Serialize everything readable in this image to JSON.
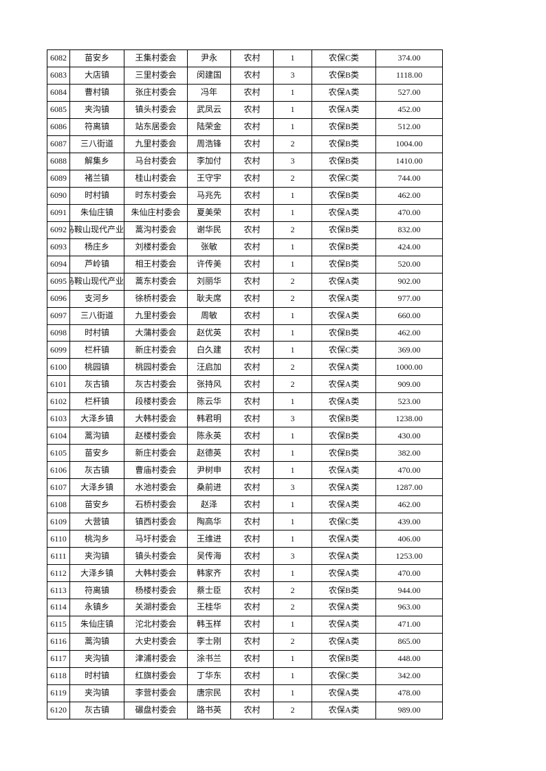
{
  "table": {
    "rows": [
      [
        "6082",
        "苗安乡",
        "王集村委会",
        "尹永",
        "农村",
        "1",
        "农保C类",
        "374.00"
      ],
      [
        "6083",
        "大店镇",
        "三里村委会",
        "闵建国",
        "农村",
        "3",
        "农保B类",
        "1118.00"
      ],
      [
        "6084",
        "曹村镇",
        "张庄村委会",
        "冯年",
        "农村",
        "1",
        "农保A类",
        "527.00"
      ],
      [
        "6085",
        "夹沟镇",
        "镇头村委会",
        "武凤云",
        "农村",
        "1",
        "农保A类",
        "452.00"
      ],
      [
        "6086",
        "符离镇",
        "站东居委会",
        "陆荣金",
        "农村",
        "1",
        "农保B类",
        "512.00"
      ],
      [
        "6087",
        "三八街道",
        "九里村委会",
        "周浩锋",
        "农村",
        "2",
        "农保B类",
        "1004.00"
      ],
      [
        "6088",
        "解集乡",
        "马台村委会",
        "李加付",
        "农村",
        "3",
        "农保B类",
        "1410.00"
      ],
      [
        "6089",
        "褚兰镇",
        "桂山村委会",
        "王守宇",
        "农村",
        "2",
        "农保C类",
        "744.00"
      ],
      [
        "6090",
        "时村镇",
        "时东村委会",
        "马兆先",
        "农村",
        "1",
        "农保B类",
        "462.00"
      ],
      [
        "6091",
        "朱仙庄镇",
        "朱仙庄村委会",
        "夏美荣",
        "农村",
        "1",
        "农保A类",
        "470.00"
      ],
      [
        "6092",
        "马鞍山现代产业",
        "蒿沟村委会",
        "谢华民",
        "农村",
        "2",
        "农保B类",
        "832.00"
      ],
      [
        "6093",
        "杨庄乡",
        "刘楼村委会",
        "张敏",
        "农村",
        "1",
        "农保B类",
        "424.00"
      ],
      [
        "6094",
        "芦岭镇",
        "相王村委会",
        "许传美",
        "农村",
        "1",
        "农保B类",
        "520.00"
      ],
      [
        "6095",
        "马鞍山现代产业",
        "蒿东村委会",
        "刘丽华",
        "农村",
        "2",
        "农保A类",
        "902.00"
      ],
      [
        "6096",
        "支河乡",
        "徐桥村委会",
        "耿夫席",
        "农村",
        "2",
        "农保A类",
        "977.00"
      ],
      [
        "6097",
        "三八街道",
        "九里村委会",
        "周敏",
        "农村",
        "1",
        "农保A类",
        "660.00"
      ],
      [
        "6098",
        "时村镇",
        "大蒲村委会",
        "赵优英",
        "农村",
        "1",
        "农保B类",
        "462.00"
      ],
      [
        "6099",
        "栏杆镇",
        "新庄村委会",
        "白久建",
        "农村",
        "1",
        "农保C类",
        "369.00"
      ],
      [
        "6100",
        "桃园镇",
        "桃园村委会",
        "汪启加",
        "农村",
        "2",
        "农保A类",
        "1000.00"
      ],
      [
        "6101",
        "灰古镇",
        "灰古村委会",
        "张持风",
        "农村",
        "2",
        "农保A类",
        "909.00"
      ],
      [
        "6102",
        "栏杆镇",
        "段楼村委会",
        "陈云华",
        "农村",
        "1",
        "农保A类",
        "523.00"
      ],
      [
        "6103",
        "大泽乡镇",
        "大韩村委会",
        "韩君明",
        "农村",
        "3",
        "农保B类",
        "1238.00"
      ],
      [
        "6104",
        "蒿沟镇",
        "赵楼村委会",
        "陈永英",
        "农村",
        "1",
        "农保B类",
        "430.00"
      ],
      [
        "6105",
        "苗安乡",
        "新庄村委会",
        "赵德英",
        "农村",
        "1",
        "农保B类",
        "382.00"
      ],
      [
        "6106",
        "灰古镇",
        "曹庙村委会",
        "尹树申",
        "农村",
        "1",
        "农保A类",
        "470.00"
      ],
      [
        "6107",
        "大泽乡镇",
        "水池村委会",
        "桑前进",
        "农村",
        "3",
        "农保A类",
        "1287.00"
      ],
      [
        "6108",
        "苗安乡",
        "石桥村委会",
        "赵泽",
        "农村",
        "1",
        "农保A类",
        "462.00"
      ],
      [
        "6109",
        "大营镇",
        "镇西村委会",
        "陶高华",
        "农村",
        "1",
        "农保C类",
        "439.00"
      ],
      [
        "6110",
        "桃沟乡",
        "马圩村委会",
        "王维进",
        "农村",
        "1",
        "农保A类",
        "406.00"
      ],
      [
        "6111",
        "夹沟镇",
        "镇头村委会",
        "吴传海",
        "农村",
        "3",
        "农保A类",
        "1253.00"
      ],
      [
        "6112",
        "大泽乡镇",
        "大韩村委会",
        "韩家齐",
        "农村",
        "1",
        "农保A类",
        "470.00"
      ],
      [
        "6113",
        "符离镇",
        "杨楼村委会",
        "蔡士臣",
        "农村",
        "2",
        "农保B类",
        "944.00"
      ],
      [
        "6114",
        "永镇乡",
        "关湖村委会",
        "王桂华",
        "农村",
        "2",
        "农保A类",
        "963.00"
      ],
      [
        "6115",
        "朱仙庄镇",
        "沱北村委会",
        "韩玉样",
        "农村",
        "1",
        "农保A类",
        "471.00"
      ],
      [
        "6116",
        "蒿沟镇",
        "大史村委会",
        "李士刚",
        "农村",
        "2",
        "农保A类",
        "865.00"
      ],
      [
        "6117",
        "夹沟镇",
        "津浦村委会",
        "涂书兰",
        "农村",
        "1",
        "农保B类",
        "448.00"
      ],
      [
        "6118",
        "时村镇",
        "红旗村委会",
        "丁华东",
        "农村",
        "1",
        "农保C类",
        "342.00"
      ],
      [
        "6119",
        "夹沟镇",
        "李营村委会",
        "唐宗民",
        "农村",
        "1",
        "农保A类",
        "478.00"
      ],
      [
        "6120",
        "灰古镇",
        "碾盘村委会",
        "路书英",
        "农村",
        "2",
        "农保A类",
        "989.00"
      ]
    ]
  }
}
